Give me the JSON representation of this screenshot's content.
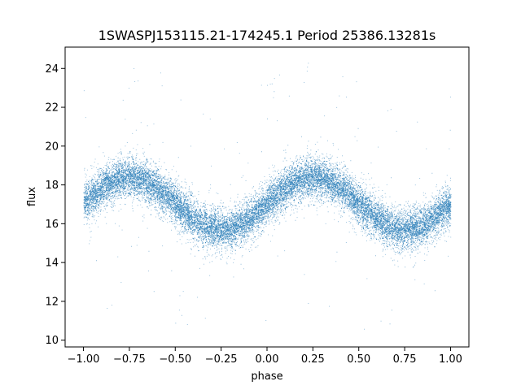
{
  "chart_data": {
    "type": "scatter",
    "title": "1SWASPJ153115.21-174245.1 Period 25386.13281s",
    "xlabel": "phase",
    "ylabel": "flux",
    "xlim": [
      -1.1,
      1.1
    ],
    "ylim": [
      9.65,
      25.1
    ],
    "xticks": [
      -1.0,
      -0.75,
      -0.5,
      -0.25,
      0.0,
      0.25,
      0.5,
      0.75,
      1.0
    ],
    "xtick_labels": [
      "−1.00",
      "−0.75",
      "−0.50",
      "−0.25",
      "0.00",
      "0.25",
      "0.50",
      "0.75",
      "1.00"
    ],
    "yticks": [
      10,
      12,
      14,
      16,
      18,
      20,
      22,
      24
    ],
    "ytick_labels": [
      "10",
      "12",
      "14",
      "16",
      "18",
      "20",
      "22",
      "24"
    ],
    "grid": false,
    "legend": "none",
    "point_color": "#1f77b4",
    "model": {
      "description_of_points": "dense phase-folded light curve, sinusoidal band",
      "mean": 17.05,
      "amplitude": 1.35,
      "peak_phases": [
        -0.75,
        0.25
      ],
      "trough_phases": [
        -0.25,
        0.75
      ],
      "band_sigma": 0.75
    },
    "x_range_points": [
      -1.0,
      1.0
    ]
  }
}
